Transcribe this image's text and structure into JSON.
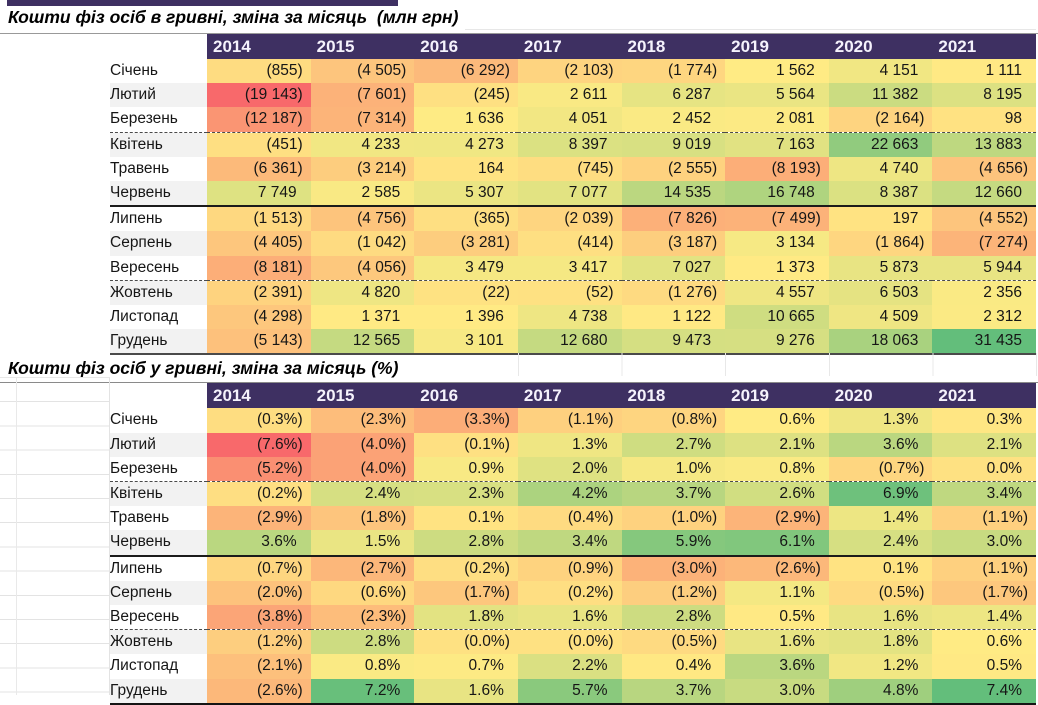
{
  "style": {
    "header_bg": "#3e3062",
    "header_text_color": "#ffffff",
    "label_band_color": "#f2f2f2",
    "scale_min_color": "#F8696B",
    "scale_mid_color": "#FFEB84",
    "scale_max_color": "#63BE7B"
  },
  "chart_data": [
    {
      "type": "heatmap",
      "title": "Кошти фіз осіб в гривні, зміна за місяць  (млн грн)",
      "unit": "млн грн",
      "column_labels": [
        "2014",
        "2015",
        "2016",
        "2017",
        "2018",
        "2019",
        "2020",
        "2021"
      ],
      "row_labels": [
        "Січень",
        "Лютий",
        "Березень",
        "Квітень",
        "Травень",
        "Червень",
        "Липень",
        "Серпень",
        "Вересень",
        "Жовтень",
        "Листопад",
        "Грудень"
      ],
      "values": [
        [
          -855,
          -4505,
          -6292,
          -2103,
          -1774,
          1562,
          4151,
          1111
        ],
        [
          -19143,
          -7601,
          -245,
          2611,
          6287,
          5564,
          11382,
          8195
        ],
        [
          -12187,
          -7314,
          1636,
          4051,
          2452,
          2081,
          -2164,
          98
        ],
        [
          -451,
          4233,
          4273,
          8397,
          9019,
          7163,
          22663,
          13883
        ],
        [
          -6361,
          -3214,
          164,
          -745,
          -2555,
          -8193,
          4740,
          -4656
        ],
        [
          7749,
          2585,
          5307,
          7077,
          14535,
          16748,
          8387,
          12660
        ],
        [
          -1513,
          -4756,
          -365,
          -2039,
          -7826,
          -7499,
          197,
          -4552
        ],
        [
          -4405,
          -1042,
          -3281,
          -414,
          -3187,
          3134,
          -1864,
          -7274
        ],
        [
          -8181,
          -4056,
          3479,
          3417,
          7027,
          1373,
          5873,
          5944
        ],
        [
          -2391,
          4820,
          -22,
          -52,
          -1276,
          4557,
          6503,
          2356
        ],
        [
          -4298,
          1371,
          1396,
          4738,
          1122,
          10665,
          4509,
          2312
        ],
        [
          -5143,
          12565,
          3101,
          12680,
          9473,
          9276,
          18063,
          31435
        ]
      ],
      "display": [
        [
          "(855)",
          "(4 505)",
          "(6 292)",
          "(2 103)",
          "(1 774)",
          "1 562",
          "4 151",
          "1 111"
        ],
        [
          "(19 143)",
          "(7 601)",
          "(245)",
          "2 611",
          "6 287",
          "5 564",
          "11 382",
          "8 195"
        ],
        [
          "(12 187)",
          "(7 314)",
          "1 636",
          "4 051",
          "2 452",
          "2 081",
          "(2 164)",
          "98"
        ],
        [
          "(451)",
          "4 233",
          "4 273",
          "8 397",
          "9 019",
          "7 163",
          "22 663",
          "13 883"
        ],
        [
          "(6 361)",
          "(3 214)",
          "164",
          "(745)",
          "(2 555)",
          "(8 193)",
          "4 740",
          "(4 656)"
        ],
        [
          "7 749",
          "2 585",
          "5 307",
          "7 077",
          "14 535",
          "16 748",
          "8 387",
          "12 660"
        ],
        [
          "(1 513)",
          "(4 756)",
          "(365)",
          "(2 039)",
          "(7 826)",
          "(7 499)",
          "197",
          "(4 552)"
        ],
        [
          "(4 405)",
          "(1 042)",
          "(3 281)",
          "(414)",
          "(3 187)",
          "3 134",
          "(1 864)",
          "(7 274)"
        ],
        [
          "(8 181)",
          "(4 056)",
          "3 479",
          "3 417",
          "7 027",
          "1 373",
          "5 873",
          "5 944"
        ],
        [
          "(2 391)",
          "4 820",
          "(22)",
          "(52)",
          "(1 276)",
          "4 557",
          "6 503",
          "2 356"
        ],
        [
          "(4 298)",
          "1 371",
          "1 396",
          "4 738",
          "1 122",
          "10 665",
          "4 509",
          "2 312"
        ],
        [
          "(5 143)",
          "12 565",
          "3 101",
          "12 680",
          "9 473",
          "9 276",
          "18 063",
          "31 435"
        ]
      ],
      "color_scale": {
        "min": "#F8696B",
        "mid": "#FFEB84",
        "max": "#63BE7B",
        "midpoint": "50th percentile"
      },
      "negative_format": "parentheses"
    },
    {
      "type": "heatmap",
      "title": "Кошти фіз осіб у гривні, зміна за місяць (%)",
      "unit": "%",
      "column_labels": [
        "2014",
        "2015",
        "2016",
        "2017",
        "2018",
        "2019",
        "2020",
        "2021"
      ],
      "row_labels": [
        "Січень",
        "Лютий",
        "Березень",
        "Квітень",
        "Травень",
        "Червень",
        "Липень",
        "Серпень",
        "Вересень",
        "Жовтень",
        "Листопад",
        "Грудень"
      ],
      "values": [
        [
          -0.3,
          -2.3,
          -3.3,
          -1.1,
          -0.8,
          0.6,
          1.3,
          0.3
        ],
        [
          -7.6,
          -4.0,
          -0.1,
          1.3,
          2.7,
          2.1,
          3.6,
          2.1
        ],
        [
          -5.2,
          -4.0,
          0.9,
          2.0,
          1.0,
          0.8,
          -0.7,
          0.0
        ],
        [
          -0.2,
          2.4,
          2.3,
          4.2,
          3.7,
          2.6,
          6.9,
          3.4
        ],
        [
          -2.9,
          -1.8,
          0.1,
          -0.4,
          -1.0,
          -2.9,
          1.4,
          -1.1
        ],
        [
          3.6,
          1.5,
          2.8,
          3.4,
          5.9,
          6.1,
          2.4,
          3.0
        ],
        [
          -0.7,
          -2.7,
          -0.2,
          -0.9,
          -3.0,
          -2.6,
          0.1,
          -1.1
        ],
        [
          -2.0,
          -0.6,
          -1.7,
          -0.2,
          -1.2,
          1.1,
          -0.5,
          -1.7
        ],
        [
          -3.8,
          -2.3,
          1.8,
          1.6,
          2.8,
          0.5,
          1.6,
          1.4
        ],
        [
          -1.2,
          2.8,
          -0.0,
          -0.0,
          -0.5,
          1.6,
          1.8,
          0.6
        ],
        [
          -2.1,
          0.8,
          0.7,
          2.2,
          0.4,
          3.6,
          1.2,
          0.5
        ],
        [
          -2.6,
          7.2,
          1.6,
          5.7,
          3.7,
          3.0,
          4.8,
          7.4
        ]
      ],
      "display": [
        [
          "(0.3%)",
          "(2.3%)",
          "(3.3%)",
          "(1.1%)",
          "(0.8%)",
          "0.6%",
          "1.3%",
          "0.3%"
        ],
        [
          "(7.6%)",
          "(4.0%)",
          "(0.1%)",
          "1.3%",
          "2.7%",
          "2.1%",
          "3.6%",
          "2.1%"
        ],
        [
          "(5.2%)",
          "(4.0%)",
          "0.9%",
          "2.0%",
          "1.0%",
          "0.8%",
          "(0.7%)",
          "0.0%"
        ],
        [
          "(0.2%)",
          "2.4%",
          "2.3%",
          "4.2%",
          "3.7%",
          "2.6%",
          "6.9%",
          "3.4%"
        ],
        [
          "(2.9%)",
          "(1.8%)",
          "0.1%",
          "(0.4%)",
          "(1.0%)",
          "(2.9%)",
          "1.4%",
          "(1.1%)"
        ],
        [
          "3.6%",
          "1.5%",
          "2.8%",
          "3.4%",
          "5.9%",
          "6.1%",
          "2.4%",
          "3.0%"
        ],
        [
          "(0.7%)",
          "(2.7%)",
          "(0.2%)",
          "(0.9%)",
          "(3.0%)",
          "(2.6%)",
          "0.1%",
          "(1.1%)"
        ],
        [
          "(2.0%)",
          "(0.6%)",
          "(1.7%)",
          "(0.2%)",
          "(1.2%)",
          "1.1%",
          "(0.5%)",
          "(1.7%)"
        ],
        [
          "(3.8%)",
          "(2.3%)",
          "1.8%",
          "1.6%",
          "2.8%",
          "0.5%",
          "1.6%",
          "1.4%"
        ],
        [
          "(1.2%)",
          "2.8%",
          "(0.0%)",
          "(0.0%)",
          "(0.5%)",
          "1.6%",
          "1.8%",
          "0.6%"
        ],
        [
          "(2.1%)",
          "0.8%",
          "0.7%",
          "2.2%",
          "0.4%",
          "3.6%",
          "1.2%",
          "0.5%"
        ],
        [
          "(2.6%)",
          "7.2%",
          "1.6%",
          "5.7%",
          "3.7%",
          "3.0%",
          "4.8%",
          "7.4%"
        ]
      ],
      "color_scale": {
        "min": "#F8696B",
        "mid": "#FFEB84",
        "max": "#63BE7B",
        "midpoint": "50th percentile"
      },
      "negative_format": "parentheses"
    }
  ]
}
